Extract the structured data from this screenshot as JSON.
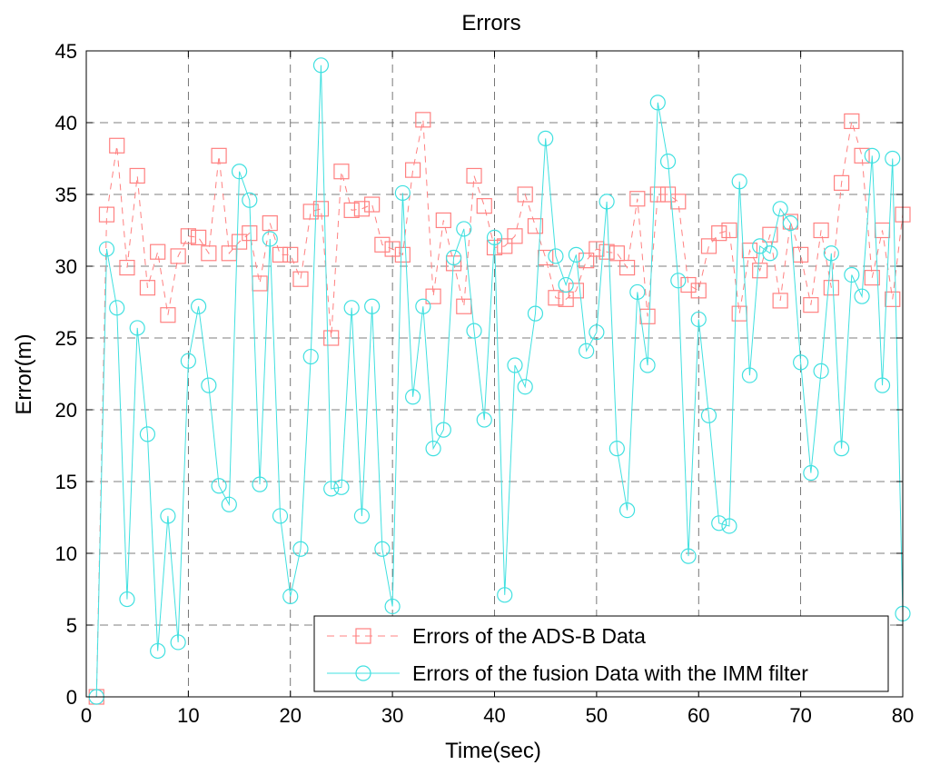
{
  "chart_data": {
    "type": "line",
    "title": "Errors",
    "xlabel": "Time(sec)",
    "ylabel": "Error(m)",
    "xlim": [
      0,
      80
    ],
    "ylim": [
      0,
      45
    ],
    "xticks": [
      "0",
      "10",
      "20",
      "30",
      "40",
      "50",
      "60",
      "70",
      "80"
    ],
    "yticks": [
      "0",
      "5",
      "10",
      "15",
      "20",
      "25",
      "30",
      "35",
      "40",
      "45"
    ],
    "grid": true,
    "legend_position": "bottom-right",
    "x": [
      1,
      2,
      3,
      4,
      5,
      6,
      7,
      8,
      9,
      10,
      11,
      12,
      13,
      14,
      15,
      16,
      17,
      18,
      19,
      20,
      21,
      22,
      23,
      24,
      25,
      26,
      27,
      28,
      29,
      30,
      31,
      32,
      33,
      34,
      35,
      36,
      37,
      38,
      39,
      40,
      41,
      42,
      43,
      44,
      45,
      46,
      47,
      48,
      49,
      50,
      51,
      52,
      53,
      54,
      55,
      56,
      57,
      58,
      59,
      60,
      61,
      62,
      63,
      64,
      65,
      66,
      67,
      68,
      69,
      70,
      71,
      72,
      73,
      74,
      75,
      76,
      77,
      78,
      79,
      80
    ],
    "series": [
      {
        "name": "Errors of the ADS-B Data",
        "color": "#ff8080",
        "marker": "square",
        "dash": "dashed",
        "values": [
          0,
          33.6,
          38.4,
          29.9,
          36.3,
          28.5,
          31.0,
          26.6,
          30.7,
          32.1,
          32.0,
          30.9,
          37.7,
          30.9,
          31.7,
          32.3,
          28.8,
          33.0,
          30.8,
          30.8,
          29.1,
          33.8,
          34.0,
          25.0,
          36.6,
          33.9,
          34.0,
          34.3,
          31.5,
          31.2,
          30.8,
          36.7,
          40.2,
          27.9,
          33.2,
          30.2,
          27.2,
          36.3,
          34.2,
          31.3,
          31.4,
          32.1,
          35.0,
          32.8,
          30.6,
          27.8,
          27.7,
          28.3,
          30.4,
          31.2,
          31.0,
          30.9,
          29.9,
          34.7,
          26.5,
          35.0,
          35.0,
          34.5,
          28.7,
          28.3,
          31.4,
          32.3,
          32.5,
          26.7,
          31.1,
          29.7,
          32.2,
          27.6,
          33.1,
          30.8,
          27.3,
          32.5,
          28.5,
          35.8,
          40.1,
          37.7,
          29.2,
          32.5,
          27.7,
          33.6
        ]
      },
      {
        "name": "Errors of the fusion Data with the IMM filter",
        "color": "#40e0e0",
        "marker": "circle",
        "dash": "solid",
        "values": [
          0,
          31.2,
          27.1,
          6.8,
          25.7,
          18.3,
          3.2,
          12.6,
          3.8,
          23.4,
          27.2,
          21.7,
          14.7,
          13.4,
          36.6,
          34.6,
          14.8,
          31.9,
          12.6,
          7.0,
          10.3,
          23.7,
          44.0,
          14.5,
          14.6,
          27.1,
          12.6,
          27.2,
          10.3,
          6.3,
          35.1,
          20.9,
          27.2,
          17.3,
          18.6,
          30.6,
          32.6,
          25.5,
          19.3,
          32.0,
          7.1,
          23.1,
          21.6,
          26.7,
          38.9,
          30.7,
          28.7,
          30.8,
          24.1,
          25.4,
          34.5,
          17.3,
          13.0,
          28.2,
          23.1,
          41.4,
          37.3,
          29.0,
          9.8,
          26.3,
          19.6,
          12.1,
          11.9,
          35.9,
          22.4,
          31.4,
          30.9,
          34.0,
          33.0,
          23.3,
          15.6,
          22.7,
          30.9,
          17.3,
          29.4,
          27.9,
          37.7,
          21.7,
          37.5,
          5.8
        ]
      }
    ]
  }
}
